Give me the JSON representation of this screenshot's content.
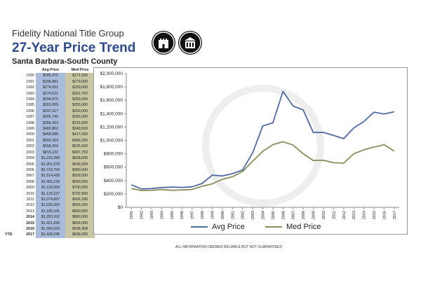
{
  "header": {
    "company": "Fidelity National Title Group",
    "title": "27-Year Price Trend",
    "subtitle": "Santa Barbara-South County"
  },
  "table": {
    "col_avg": "Avg Price",
    "col_med": "Med Price",
    "rows": [
      {
        "prefix": "",
        "year": "1990",
        "avg": "$286,375",
        "med": "$271,500"
      },
      {
        "prefix": "",
        "year": "1991",
        "avg": "$335,881",
        "med": "$279,500"
      },
      {
        "prefix": "",
        "year": "1992",
        "avg": "$274,051",
        "med": "$250,000"
      },
      {
        "prefix": "",
        "year": "1993",
        "avg": "$279,521",
        "med": "$252,750"
      },
      {
        "prefix": "",
        "year": "1994",
        "avg": "$294,875",
        "med": "$265,000"
      },
      {
        "prefix": "",
        "year": "1995",
        "avg": "$301,065",
        "med": "$253,000"
      },
      {
        "prefix": "",
        "year": "1996",
        "avg": "$297,017",
        "med": "$260,000"
      },
      {
        "prefix": "",
        "year": "1997",
        "avg": "$305,749",
        "med": "$265,000"
      },
      {
        "prefix": "",
        "year": "1998",
        "avg": "$356,432",
        "med": "$315,000"
      },
      {
        "prefix": "",
        "year": "1999",
        "avg": "$480,862",
        "med": "$349,500"
      },
      {
        "prefix": "",
        "year": "2000",
        "avg": "$468,085",
        "med": "$417,500"
      },
      {
        "prefix": "",
        "year": "2001",
        "avg": "$502,424",
        "med": "$456,250"
      },
      {
        "prefix": "",
        "year": "2002",
        "avg": "$558,359",
        "med": "$535,000"
      },
      {
        "prefix": "",
        "year": "2003",
        "avg": "$815,132",
        "med": "$687,750"
      },
      {
        "prefix": "",
        "year": "2004",
        "avg": "$1,216,368",
        "med": "$838,000"
      },
      {
        "prefix": "",
        "year": "2005",
        "avg": "$1,261,578",
        "med": "$936,500"
      },
      {
        "prefix": "",
        "year": "2006",
        "avg": "$1,733,700",
        "med": "$980,000"
      },
      {
        "prefix": "",
        "year": "2007",
        "avg": "$1,514,428",
        "med": "$929,500"
      },
      {
        "prefix": "",
        "year": "2008",
        "avg": "$1,455,236",
        "med": "$800,000"
      },
      {
        "prefix": "",
        "year": "2009",
        "avg": "$1,118,698",
        "med": "$700,000"
      },
      {
        "prefix": "",
        "year": "2010",
        "avg": "$1,120,227",
        "med": "$702,500"
      },
      {
        "prefix": "",
        "year": "2011",
        "avg": "$1,074,837",
        "med": "$666,396"
      },
      {
        "prefix": "",
        "year": "2012",
        "avg": "$1,025,906",
        "med": "$659,250"
      },
      {
        "prefix": "",
        "year": "2013",
        "avg": "$1,185,541",
        "med": "$800,000"
      },
      {
        "prefix": "",
        "year": "2014",
        "avg": "$1,283,202",
        "med": "$860,000"
      },
      {
        "prefix": "",
        "year": "2015",
        "avg": "$1,421,840",
        "med": "$899,000"
      },
      {
        "prefix": "",
        "year": "2016",
        "avg": "$1,394,559",
        "med": "$936,458"
      },
      {
        "prefix": "YTD",
        "year": "2017",
        "avg": "$1,428,246",
        "med": "$839,000"
      }
    ]
  },
  "legend": {
    "avg": "Avg Price",
    "med": "Med Price"
  },
  "disclaimer": "ALL INFORMATION DEEMED RELIABLE BUT NOT GUARANTEED",
  "chart_data": {
    "type": "line",
    "title": "",
    "xlabel": "",
    "ylabel": "",
    "x": [
      1991,
      1992,
      1993,
      1994,
      1995,
      1996,
      1997,
      1998,
      1999,
      2000,
      2001,
      2002,
      2003,
      2004,
      2005,
      2006,
      2007,
      2008,
      2009,
      2010,
      2011,
      2012,
      2013,
      2014,
      2015,
      2016,
      2017
    ],
    "ylim": [
      0,
      2000000
    ],
    "yticks": [
      0,
      200000,
      400000,
      600000,
      800000,
      1000000,
      1200000,
      1400000,
      1600000,
      1800000,
      2000000
    ],
    "ytick_labels": [
      "$0",
      "$200,000",
      "$400,000",
      "$600,000",
      "$800,000",
      "$1,000,000",
      "$1,200,000",
      "$1,400,000",
      "$1,600,000",
      "$1,800,000",
      "$2,000,000"
    ],
    "grid": false,
    "legend_position": "bottom",
    "series": [
      {
        "name": "Avg Price",
        "color": "#4f6aa3",
        "values": [
          335881,
          274051,
          279521,
          294875,
          301065,
          297017,
          305749,
          356432,
          480862,
          468085,
          502424,
          558359,
          815132,
          1216368,
          1261578,
          1733700,
          1514428,
          1455236,
          1118698,
          1120227,
          1074837,
          1025906,
          1185541,
          1283202,
          1421840,
          1394559,
          1428246
        ]
      },
      {
        "name": "Med Price",
        "color": "#8a8e5a",
        "values": [
          279500,
          250000,
          252750,
          265000,
          253000,
          260000,
          265000,
          315000,
          349500,
          417500,
          456250,
          535000,
          687750,
          838000,
          936500,
          980000,
          929500,
          800000,
          700000,
          702500,
          666396,
          659250,
          800000,
          860000,
          899000,
          936458,
          839000
        ]
      }
    ]
  }
}
